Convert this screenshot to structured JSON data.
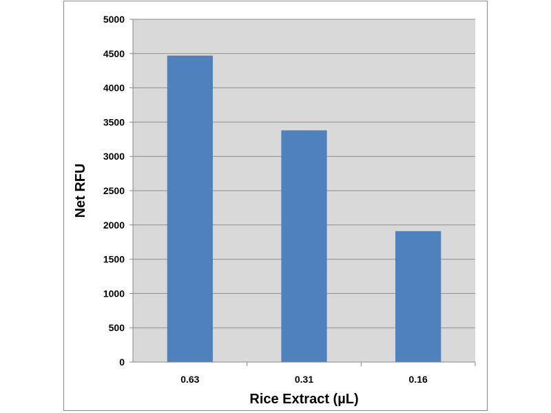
{
  "chart_data": {
    "type": "bar",
    "title": "",
    "xlabel": "Rice Extract  (µL)",
    "ylabel": "Net RFU",
    "categories": [
      "0.63",
      "0.31",
      "0.16"
    ],
    "values": [
      4470,
      3380,
      1910
    ],
    "ylim": [
      0,
      5000
    ],
    "yticks": [
      0,
      500,
      1000,
      1500,
      2000,
      2500,
      3000,
      3500,
      4000,
      4500,
      5000
    ],
    "grid": true,
    "legend": "none",
    "colors": {
      "bar": "#4f81bd",
      "plot_background": "#d9d9d9",
      "gridline": "#8c8c8c",
      "frame": "#8a8a8a"
    }
  }
}
